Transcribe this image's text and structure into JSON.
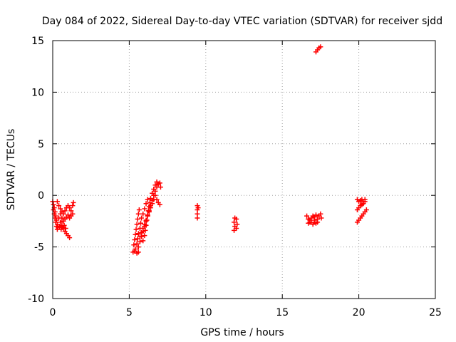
{
  "chart_data": {
    "type": "scatter",
    "title": "Day 084 of 2022, Sidereal Day-to-day VTEC variation (SDTVAR) for receiver sjdd",
    "xlabel": "GPS time / hours",
    "ylabel": "SDTVAR / TECUs",
    "xlim": [
      0,
      25
    ],
    "ylim": [
      -10,
      15
    ],
    "xticks": [
      "0",
      "5",
      "10",
      "15",
      "20",
      "25"
    ],
    "yticks": [
      "-10",
      "-5",
      "0",
      "5",
      "10",
      "15"
    ],
    "grid": true,
    "marker": "plus",
    "color": "#ff0000",
    "series": [
      {
        "name": "SDTVAR",
        "points": [
          [
            0.0,
            -0.6
          ],
          [
            0.05,
            -0.9
          ],
          [
            0.1,
            -1.2
          ],
          [
            0.15,
            -1.6
          ],
          [
            0.2,
            -2.0
          ],
          [
            0.25,
            -2.4
          ],
          [
            0.3,
            -2.8
          ],
          [
            0.35,
            -3.1
          ],
          [
            0.05,
            -1.4
          ],
          [
            0.1,
            -1.8
          ],
          [
            0.15,
            -2.2
          ],
          [
            0.2,
            -2.6
          ],
          [
            0.25,
            -3.0
          ],
          [
            0.3,
            -3.3
          ],
          [
            0.3,
            -0.6
          ],
          [
            0.4,
            -1.0
          ],
          [
            0.5,
            -1.3
          ],
          [
            0.6,
            -1.6
          ],
          [
            0.7,
            -1.8
          ],
          [
            0.8,
            -1.5
          ],
          [
            0.9,
            -1.2
          ],
          [
            1.0,
            -1.0
          ],
          [
            1.1,
            -1.2
          ],
          [
            1.2,
            -1.5
          ],
          [
            1.3,
            -1.0
          ],
          [
            1.35,
            -0.7
          ],
          [
            0.4,
            -2.2
          ],
          [
            0.5,
            -2.6
          ],
          [
            0.6,
            -2.9
          ],
          [
            0.7,
            -3.2
          ],
          [
            0.8,
            -3.5
          ],
          [
            0.9,
            -3.7
          ],
          [
            1.0,
            -3.9
          ],
          [
            1.1,
            -4.1
          ],
          [
            0.5,
            -1.8
          ],
          [
            0.6,
            -2.2
          ],
          [
            0.7,
            -2.5
          ],
          [
            0.8,
            -2.3
          ],
          [
            0.9,
            -2.1
          ],
          [
            1.0,
            -1.9
          ],
          [
            1.1,
            -2.2
          ],
          [
            1.2,
            -2.0
          ],
          [
            1.3,
            -1.8
          ],
          [
            0.45,
            -3.0
          ],
          [
            0.55,
            -3.3
          ],
          [
            0.65,
            -3.1
          ],
          [
            0.75,
            -2.9
          ],
          [
            0.85,
            -3.2
          ],
          [
            5.25,
            -5.5
          ],
          [
            5.35,
            -5.4
          ],
          [
            5.5,
            -5.6
          ],
          [
            5.6,
            -5.5
          ],
          [
            5.3,
            -4.8
          ],
          [
            5.35,
            -4.3
          ],
          [
            5.4,
            -3.8
          ],
          [
            5.45,
            -3.3
          ],
          [
            5.5,
            -2.8
          ],
          [
            5.55,
            -2.3
          ],
          [
            5.6,
            -1.8
          ],
          [
            5.65,
            -1.4
          ],
          [
            5.4,
            -5.2
          ],
          [
            5.5,
            -4.7
          ],
          [
            5.55,
            -4.2
          ],
          [
            5.6,
            -3.7
          ],
          [
            5.7,
            -3.2
          ],
          [
            5.75,
            -2.7
          ],
          [
            5.8,
            -2.2
          ],
          [
            5.9,
            -1.8
          ],
          [
            6.0,
            -1.3
          ],
          [
            6.1,
            -0.8
          ],
          [
            6.2,
            -0.4
          ],
          [
            5.6,
            -5.0
          ],
          [
            5.7,
            -4.5
          ],
          [
            5.8,
            -4.0
          ],
          [
            5.9,
            -3.5
          ],
          [
            6.0,
            -3.0
          ],
          [
            6.1,
            -2.5
          ],
          [
            6.2,
            -2.0
          ],
          [
            6.3,
            -1.5
          ],
          [
            6.4,
            -1.0
          ],
          [
            6.5,
            -0.5
          ],
          [
            6.6,
            0.0
          ],
          [
            6.7,
            0.4
          ],
          [
            6.8,
            0.8
          ],
          [
            6.9,
            1.1
          ],
          [
            7.0,
            1.2
          ],
          [
            7.05,
            0.8
          ],
          [
            5.7,
            -4.0
          ],
          [
            5.8,
            -3.6
          ],
          [
            5.9,
            -3.2
          ],
          [
            6.0,
            -2.8
          ],
          [
            6.1,
            -2.4
          ],
          [
            6.2,
            -2.0
          ],
          [
            6.3,
            -1.6
          ],
          [
            6.4,
            -1.2
          ],
          [
            6.5,
            -0.8
          ],
          [
            6.6,
            -0.4
          ],
          [
            6.7,
            0.0
          ],
          [
            6.8,
            -0.4
          ],
          [
            6.9,
            -0.7
          ],
          [
            7.0,
            -0.9
          ],
          [
            5.9,
            -4.4
          ],
          [
            6.0,
            -3.9
          ],
          [
            6.05,
            -3.4
          ],
          [
            6.1,
            -2.9
          ],
          [
            6.15,
            -2.4
          ],
          [
            6.2,
            -1.9
          ],
          [
            6.25,
            -1.5
          ],
          [
            6.3,
            -1.1
          ],
          [
            6.35,
            -0.7
          ],
          [
            6.4,
            -0.3
          ],
          [
            6.5,
            0.2
          ],
          [
            6.6,
            0.6
          ],
          [
            6.7,
            1.0
          ],
          [
            6.8,
            1.3
          ],
          [
            9.45,
            -1.0
          ],
          [
            9.45,
            -1.4
          ],
          [
            9.45,
            -1.8
          ],
          [
            9.45,
            -2.2
          ],
          [
            9.5,
            -1.2
          ],
          [
            11.9,
            -2.2
          ],
          [
            11.85,
            -2.6
          ],
          [
            11.9,
            -3.0
          ],
          [
            11.85,
            -3.4
          ],
          [
            12.0,
            -2.3
          ],
          [
            12.05,
            -2.8
          ],
          [
            12.0,
            -3.2
          ],
          [
            16.6,
            -2.0
          ],
          [
            16.7,
            -2.3
          ],
          [
            16.8,
            -2.6
          ],
          [
            16.9,
            -2.2
          ],
          [
            17.0,
            -2.0
          ],
          [
            17.1,
            -2.4
          ],
          [
            17.2,
            -2.7
          ],
          [
            17.3,
            -2.3
          ],
          [
            17.4,
            -2.0
          ],
          [
            17.5,
            -1.8
          ],
          [
            17.55,
            -2.2
          ],
          [
            16.7,
            -2.7
          ],
          [
            16.8,
            -2.4
          ],
          [
            16.9,
            -2.6
          ],
          [
            17.0,
            -2.8
          ],
          [
            17.1,
            -2.1
          ],
          [
            17.2,
            -1.9
          ],
          [
            17.3,
            -2.6
          ],
          [
            17.2,
            13.9
          ],
          [
            17.3,
            14.1
          ],
          [
            17.4,
            14.3
          ],
          [
            17.5,
            14.4
          ],
          [
            19.9,
            -0.4
          ],
          [
            20.0,
            -0.6
          ],
          [
            20.1,
            -0.5
          ],
          [
            20.2,
            -0.4
          ],
          [
            20.3,
            -0.6
          ],
          [
            20.4,
            -0.4
          ],
          [
            19.9,
            -1.4
          ],
          [
            20.0,
            -1.2
          ],
          [
            20.1,
            -1.0
          ],
          [
            20.2,
            -0.9
          ],
          [
            20.3,
            -0.8
          ],
          [
            20.4,
            -0.6
          ],
          [
            19.9,
            -2.6
          ],
          [
            20.0,
            -2.4
          ],
          [
            20.1,
            -2.2
          ],
          [
            20.2,
            -2.0
          ],
          [
            20.3,
            -1.8
          ],
          [
            20.4,
            -1.6
          ],
          [
            20.5,
            -1.4
          ]
        ]
      }
    ]
  }
}
